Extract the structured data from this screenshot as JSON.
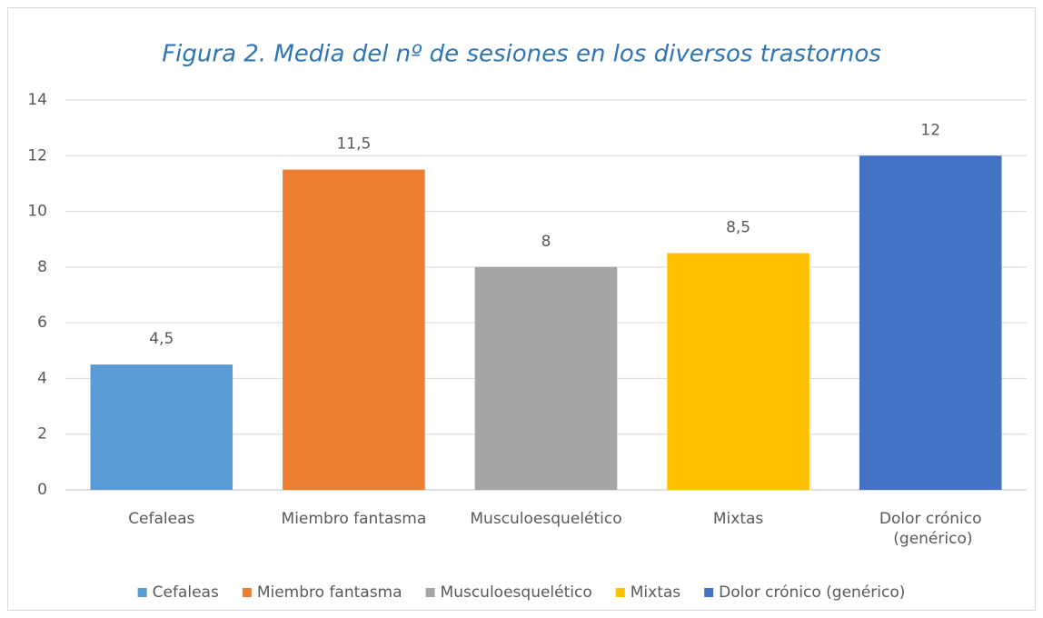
{
  "chart_data": {
    "type": "bar",
    "title": "Figura 2. Media del nº de sesiones en los diversos trastornos",
    "categories": [
      "Cefaleas",
      "Miembro fantasma",
      "Musculoesquelético",
      "Mixtas",
      "Dolor crónico (genérico)"
    ],
    "values": [
      4.5,
      11.5,
      8,
      8.5,
      12
    ],
    "value_labels": [
      "4,5",
      "11,5",
      "8",
      "8,5",
      "12"
    ],
    "colors": [
      "#5b9bd5",
      "#ed7d31",
      "#a5a5a5",
      "#ffc000",
      "#4472c4"
    ],
    "ylim": [
      0,
      14
    ],
    "yticks": [
      0,
      2,
      4,
      6,
      8,
      10,
      12,
      14
    ],
    "grid": true,
    "legend": "bottom"
  }
}
